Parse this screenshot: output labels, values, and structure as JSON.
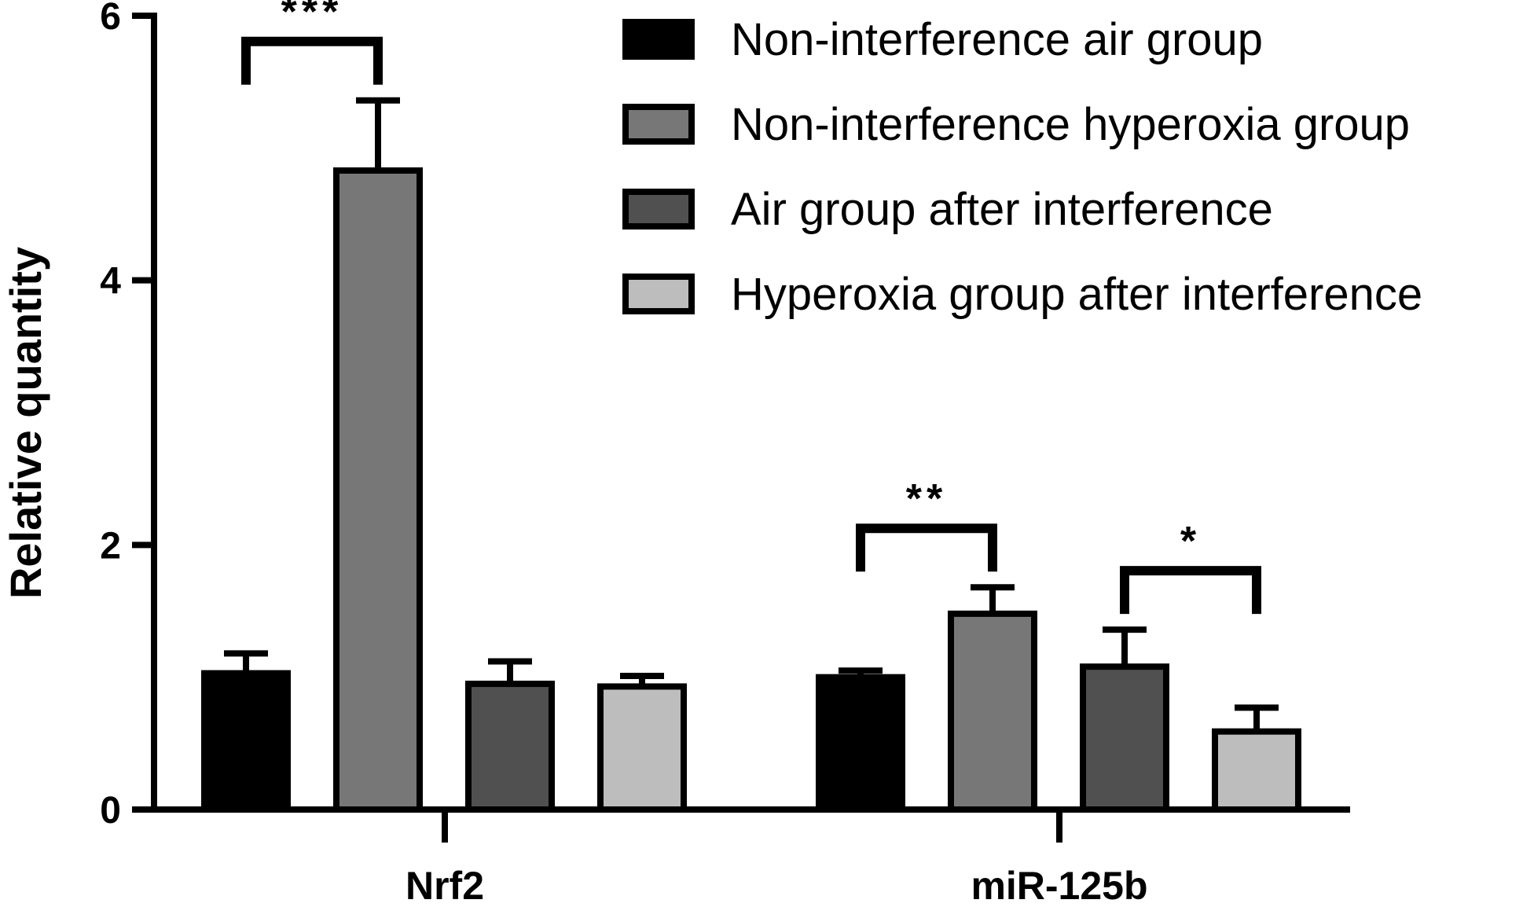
{
  "chart_data": {
    "type": "bar",
    "title": "",
    "xlabel": "",
    "ylabel": "Relative quantity",
    "ylim": [
      0,
      6
    ],
    "yticks": [
      0,
      2,
      4,
      6
    ],
    "grid": false,
    "legend_position": "top-right",
    "categories": [
      "Nrf2",
      "miR-125b"
    ],
    "series": [
      {
        "name": "Non-interference air group",
        "color": "#000000",
        "values": [
          1.03,
          1.0
        ],
        "errors": [
          0.15,
          0.05
        ]
      },
      {
        "name": "Non-interference hyperoxia group",
        "color": "#777777",
        "values": [
          4.83,
          1.48
        ],
        "errors": [
          0.53,
          0.2
        ]
      },
      {
        "name": "Air group after interference",
        "color": "#505050",
        "values": [
          0.95,
          1.08
        ],
        "errors": [
          0.17,
          0.28
        ]
      },
      {
        "name": "Hyperoxia group after interference",
        "color": "#bdbdbd",
        "values": [
          0.93,
          0.59
        ],
        "errors": [
          0.08,
          0.18
        ]
      }
    ],
    "annotations": [
      {
        "category": 0,
        "from_series": 0,
        "to_series": 1,
        "label": "***"
      },
      {
        "category": 1,
        "from_series": 0,
        "to_series": 1,
        "label": "**"
      },
      {
        "category": 1,
        "from_series": 2,
        "to_series": 3,
        "label": "*"
      }
    ]
  }
}
